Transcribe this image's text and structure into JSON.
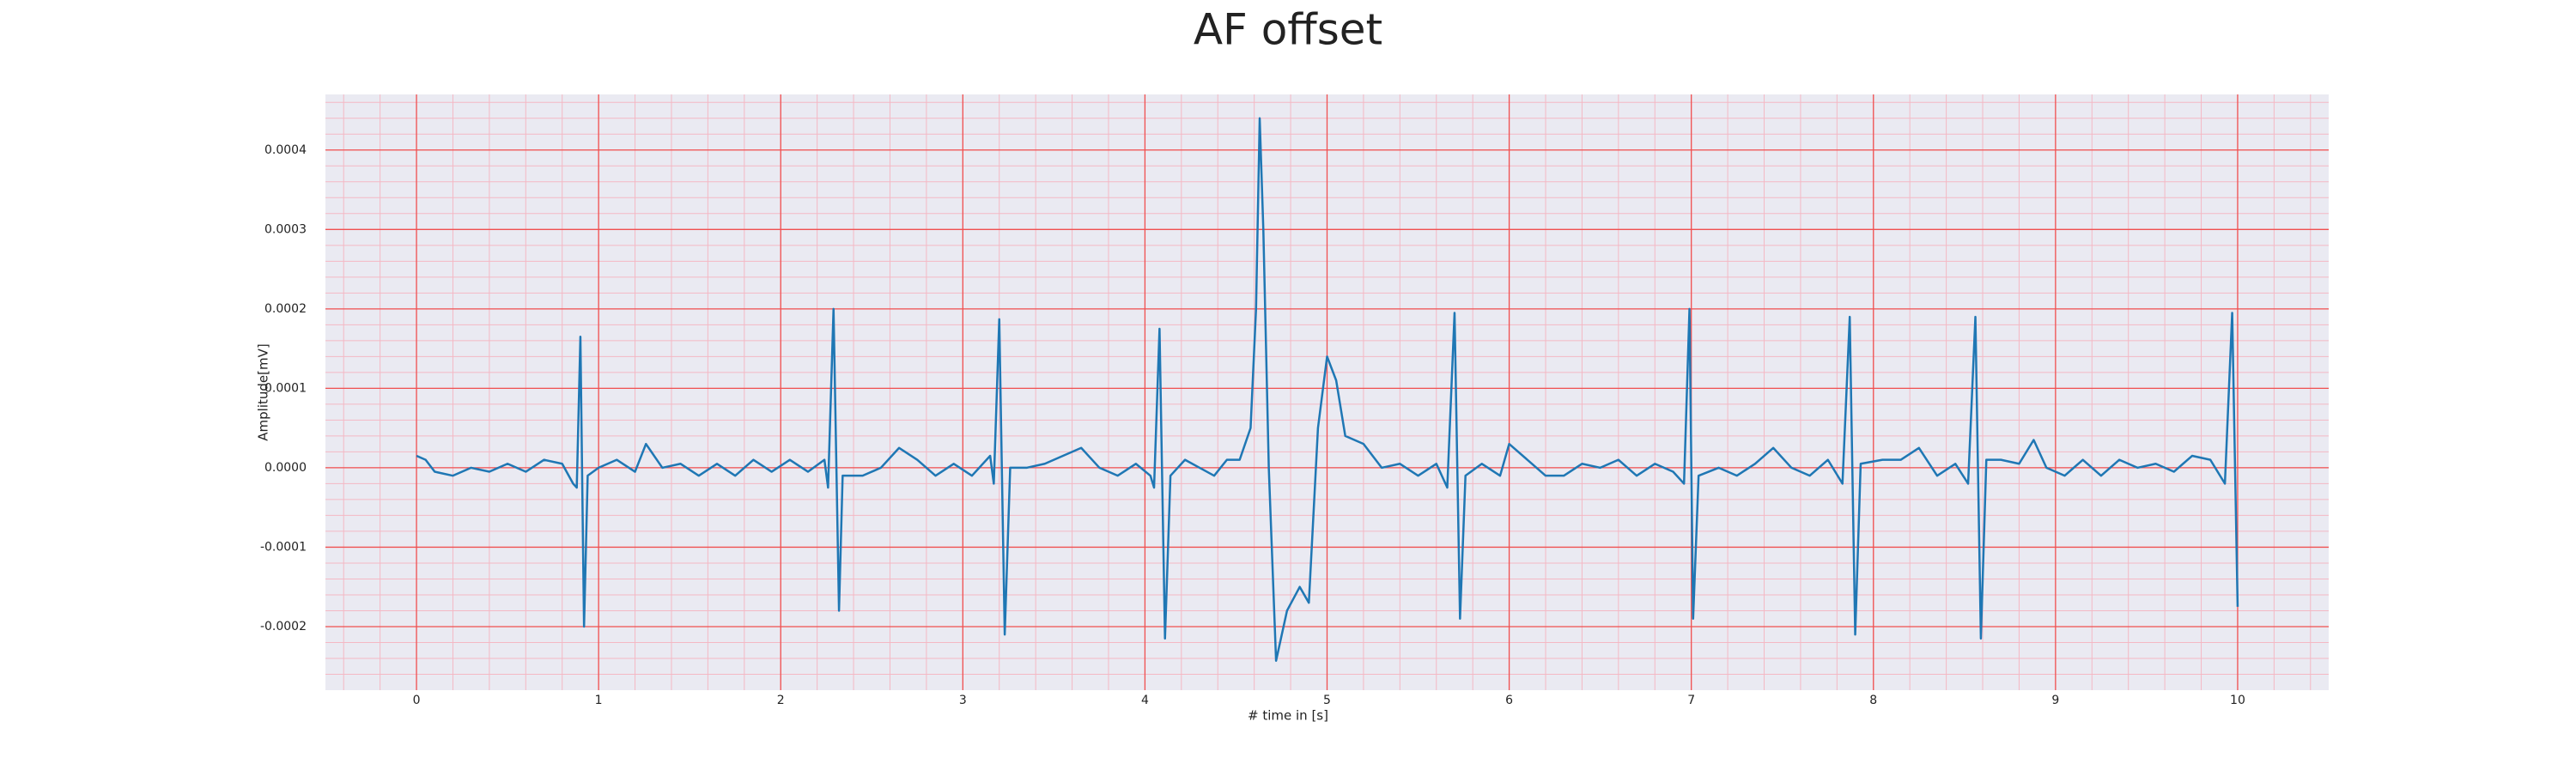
{
  "chart_data": {
    "type": "line",
    "title": "AF offset",
    "xlabel": "# time in [s]",
    "ylabel": "Amplitude[mV]",
    "xlim": [
      -0.5,
      10.5
    ],
    "ylim": [
      -0.00028,
      0.00047
    ],
    "xticks": [
      0,
      1,
      2,
      3,
      4,
      5,
      6,
      7,
      8,
      9,
      10
    ],
    "yticks": [
      -0.0002,
      -0.0001,
      {
        "value": 0,
        "label": "0.0000"
      },
      0.0001,
      0.0002,
      0.0003,
      0.0004
    ],
    "grid": true,
    "minor_grid": {
      "x": 0.2,
      "y": 2e-05
    },
    "series": [
      {
        "color": "#1f77b4",
        "x": [
          0.0,
          0.05,
          0.1,
          0.2,
          0.3,
          0.4,
          0.5,
          0.6,
          0.7,
          0.8,
          0.86,
          0.88,
          0.9,
          0.92,
          0.94,
          1.0,
          1.1,
          1.2,
          1.26,
          1.35,
          1.45,
          1.55,
          1.65,
          1.75,
          1.85,
          1.95,
          2.05,
          2.15,
          2.24,
          2.26,
          2.29,
          2.32,
          2.34,
          2.45,
          2.55,
          2.65,
          2.75,
          2.85,
          2.95,
          3.05,
          3.15,
          3.17,
          3.2,
          3.23,
          3.26,
          3.35,
          3.45,
          3.55,
          3.65,
          3.75,
          3.85,
          3.95,
          4.03,
          4.05,
          4.08,
          4.11,
          4.14,
          4.22,
          4.3,
          4.38,
          4.45,
          4.52,
          4.58,
          4.61,
          4.63,
          4.65,
          4.68,
          4.72,
          4.78,
          4.85,
          4.9,
          4.95,
          5.0,
          5.05,
          5.1,
          5.2,
          5.3,
          5.4,
          5.5,
          5.6,
          5.66,
          5.7,
          5.73,
          5.76,
          5.85,
          5.95,
          6.0,
          6.1,
          6.2,
          6.3,
          6.4,
          6.5,
          6.6,
          6.7,
          6.8,
          6.9,
          6.96,
          6.99,
          7.01,
          7.04,
          7.15,
          7.25,
          7.35,
          7.45,
          7.55,
          7.65,
          7.75,
          7.83,
          7.87,
          7.9,
          7.93,
          8.05,
          8.15,
          8.25,
          8.35,
          8.45,
          8.52,
          8.56,
          8.59,
          8.62,
          8.7,
          8.8,
          8.88,
          8.95,
          9.05,
          9.15,
          9.25,
          9.35,
          9.45,
          9.55,
          9.65,
          9.75,
          9.85,
          9.93,
          9.97,
          10.0
        ],
        "values": [
          1.5e-05,
          1e-05,
          -5e-06,
          -1e-05,
          0.0,
          -5e-06,
          5e-06,
          -5e-06,
          1e-05,
          5e-06,
          -2e-05,
          -2.5e-05,
          0.000165,
          -0.0002,
          -1e-05,
          0.0,
          1e-05,
          -5e-06,
          3e-05,
          0.0,
          5e-06,
          -1e-05,
          5e-06,
          -1e-05,
          1e-05,
          -5e-06,
          1e-05,
          -5e-06,
          1e-05,
          -2.5e-05,
          0.0002,
          -0.00018,
          -1e-05,
          -1e-05,
          0.0,
          2.5e-05,
          1e-05,
          -1e-05,
          5e-06,
          -1e-05,
          1.5e-05,
          -2e-05,
          0.000187,
          -0.00021,
          0.0,
          0.0,
          5e-06,
          1.5e-05,
          2.5e-05,
          0.0,
          -1e-05,
          5e-06,
          -1e-05,
          -2.5e-05,
          0.000175,
          -0.000215,
          -1e-05,
          1e-05,
          0.0,
          -1e-05,
          1e-05,
          1e-05,
          5e-05,
          0.0002,
          0.00044,
          0.0003,
          0.0,
          -0.000243,
          -0.00018,
          -0.00015,
          -0.00017,
          5e-05,
          0.00014,
          0.00011,
          4e-05,
          3e-05,
          0.0,
          5e-06,
          -1e-05,
          5e-06,
          -2.5e-05,
          0.000195,
          -0.00019,
          -1e-05,
          5e-06,
          -1e-05,
          3e-05,
          1e-05,
          -1e-05,
          -1e-05,
          5e-06,
          0.0,
          1e-05,
          -1e-05,
          5e-06,
          -5e-06,
          -2e-05,
          0.0002,
          -0.00019,
          -1e-05,
          0.0,
          -1e-05,
          5e-06,
          2.5e-05,
          0.0,
          -1e-05,
          1e-05,
          -2e-05,
          0.00019,
          -0.00021,
          5e-06,
          1e-05,
          1e-05,
          2.5e-05,
          -1e-05,
          5e-06,
          -2e-05,
          0.00019,
          -0.000215,
          1e-05,
          1e-05,
          5e-06,
          3.5e-05,
          0.0,
          -1e-05,
          1e-05,
          -1e-05,
          1e-05,
          0.0,
          5e-06,
          -5e-06,
          1.5e-05,
          1e-05,
          -2e-05,
          0.000195,
          -0.000175
        ]
      }
    ]
  }
}
